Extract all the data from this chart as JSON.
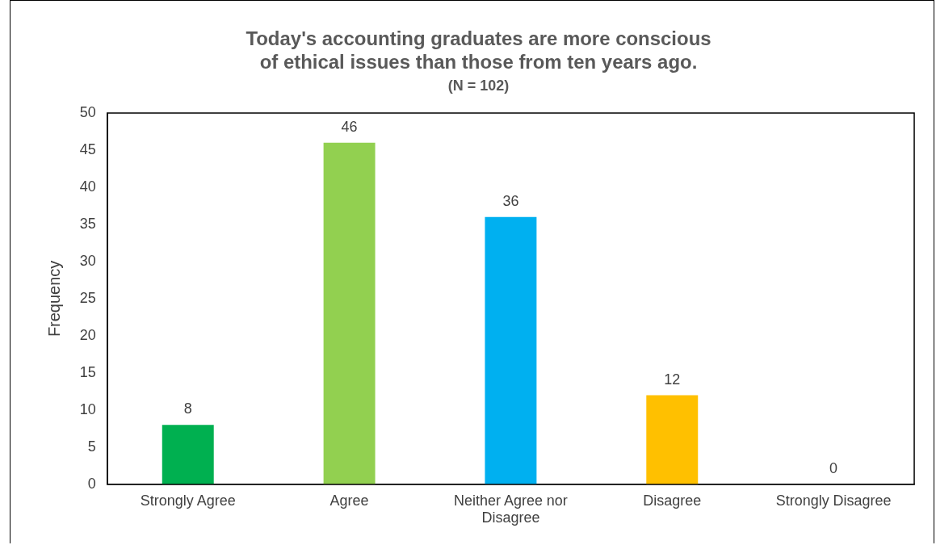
{
  "chart_data": {
    "type": "bar",
    "title": "Today's accounting graduates are more conscious of ethical issues than those from ten years ago.",
    "subtitle": "(N = 102)",
    "ylabel": "Frequency",
    "categories": [
      "Strongly Agree",
      "Agree",
      "Neither Agree nor Disagree",
      "Disagree",
      "Strongly Disagree"
    ],
    "values": [
      8,
      46,
      36,
      12,
      0
    ],
    "colors": [
      "#00b050",
      "#92d050",
      "#00b0f0",
      "#ffc000",
      "#7030a0"
    ],
    "ylim": [
      0,
      50
    ],
    "yticks": [
      0,
      5,
      10,
      15,
      20,
      25,
      30,
      35,
      40,
      45,
      50
    ],
    "grid": false,
    "legend": false,
    "data_labels": true
  }
}
